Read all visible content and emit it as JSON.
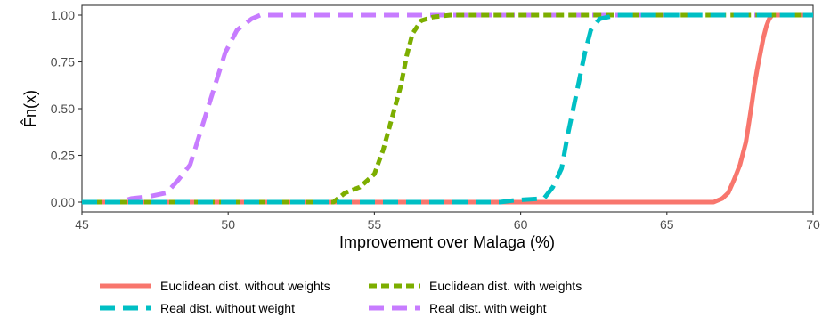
{
  "chart_data": {
    "type": "line",
    "title": "",
    "xlabel": "Improvement over Malaga (%)",
    "ylabel": "F̂n(x)",
    "xlim": [
      45,
      70
    ],
    "ylim": [
      0,
      1
    ],
    "x_ticks": [
      45,
      50,
      55,
      60,
      65,
      70
    ],
    "x_tick_labels": [
      "45",
      "50",
      "55",
      "60",
      "65",
      "70"
    ],
    "y_ticks": [
      0,
      0.25,
      0.5,
      0.75,
      1.0
    ],
    "y_tick_labels": [
      "0.00",
      "0.25",
      "0.50",
      "0.75",
      "1.00"
    ],
    "grid": false,
    "legend_position": "bottom",
    "series": [
      {
        "name": "Euclidean dist. without weights",
        "color": "#F8766D",
        "dash": "solid",
        "x": [
          45,
          66.6,
          66.9,
          67.1,
          67.3,
          67.5,
          67.7,
          67.8,
          67.9,
          68.0,
          68.1,
          68.2,
          68.3,
          68.4,
          68.5,
          68.6,
          70
        ],
        "y": [
          0,
          0,
          0.02,
          0.05,
          0.12,
          0.2,
          0.32,
          0.42,
          0.52,
          0.63,
          0.72,
          0.8,
          0.88,
          0.94,
          0.98,
          1.0,
          1.0
        ]
      },
      {
        "name": "Euclidean dist. with weights",
        "color": "#7CAE00",
        "dash": "short",
        "x": [
          45,
          53.6,
          54.0,
          54.5,
          55.0,
          55.3,
          55.6,
          55.9,
          56.1,
          56.3,
          56.6,
          57.0,
          57.6,
          70
        ],
        "y": [
          0,
          0,
          0.05,
          0.08,
          0.15,
          0.28,
          0.45,
          0.62,
          0.78,
          0.9,
          0.97,
          0.99,
          1.0,
          1.0
        ]
      },
      {
        "name": "Real dist. without weight",
        "color": "#00BFC4",
        "dash": "long",
        "x": [
          45,
          59.3,
          59.8,
          60.8,
          61.1,
          61.4,
          61.6,
          61.8,
          62.0,
          62.2,
          62.4,
          62.7,
          63.3,
          70
        ],
        "y": [
          0,
          0,
          0.01,
          0.02,
          0.08,
          0.18,
          0.35,
          0.5,
          0.65,
          0.8,
          0.92,
          0.98,
          1.0,
          1.0
        ]
      },
      {
        "name": "Real dist. with weight",
        "color": "#C77CFF",
        "dash": "long",
        "x": [
          45,
          46.3,
          46.7,
          47.3,
          47.9,
          48.3,
          48.7,
          49.0,
          49.3,
          49.6,
          49.9,
          50.3,
          50.8,
          51.1,
          70
        ],
        "y": [
          0,
          0,
          0.02,
          0.03,
          0.05,
          0.12,
          0.2,
          0.35,
          0.5,
          0.65,
          0.8,
          0.92,
          0.98,
          1.0,
          1.0
        ]
      }
    ]
  }
}
